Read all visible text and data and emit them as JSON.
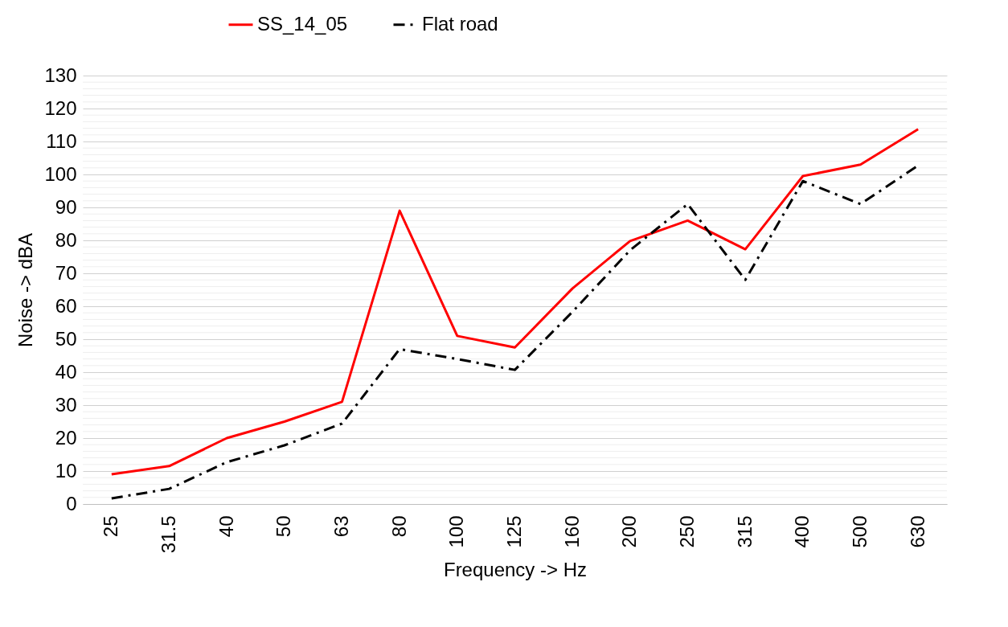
{
  "chart_data": {
    "type": "line",
    "xlabel": "Frequency -> Hz",
    "ylabel": "Noise -> dBA",
    "categories": [
      "25",
      "31.5",
      "40",
      "50",
      "63",
      "80",
      "100",
      "125",
      "160",
      "200",
      "250",
      "315",
      "400",
      "500",
      "630"
    ],
    "series": [
      {
        "name": "SS_14_05",
        "color": "#ff0000",
        "line_style": "solid",
        "values": [
          9,
          11.5,
          20,
          25,
          31,
          89,
          51,
          47.5,
          65.4,
          79.8,
          86,
          77.3,
          99.5,
          103,
          113.7
        ]
      },
      {
        "name": "Flat road",
        "color": "#000000",
        "line_style": "dashdot",
        "values": [
          1.7,
          4.6,
          12.7,
          17.8,
          24.4,
          47,
          44,
          40.7,
          58.3,
          77,
          91,
          68,
          98,
          91,
          102.7
        ]
      }
    ],
    "ylim": [
      0,
      130
    ],
    "yticks": [
      0,
      10,
      20,
      30,
      40,
      50,
      60,
      70,
      80,
      90,
      100,
      110,
      120,
      130
    ],
    "grid": "y",
    "legend": "top"
  }
}
